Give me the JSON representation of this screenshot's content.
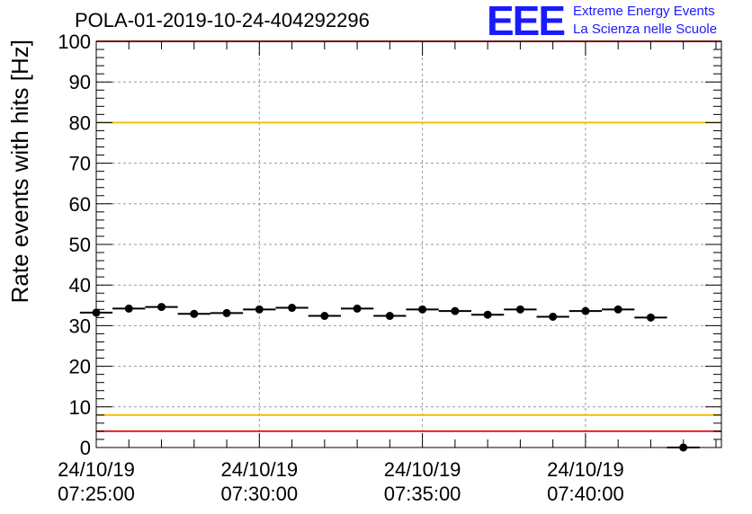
{
  "header": {
    "title": "POLA-01-2019-10-24-404292296",
    "logo_text": "EEE",
    "org_line1": "Extreme Energy Events",
    "org_line2": "La Scienza nelle Scuole",
    "logo_color": "#1a1aff"
  },
  "chart_data": {
    "type": "scatter",
    "title": "POLA-01-2019-10-24-404292296",
    "ylabel": "Rate events with hits [Hz]",
    "xlabel": "",
    "ylim": [
      0,
      100
    ],
    "y_ticks": [
      "0",
      "10",
      "20",
      "30",
      "40",
      "50",
      "60",
      "70",
      "80",
      "90",
      "100"
    ],
    "x_ticks": [
      {
        "date": "24/10/19",
        "time": "07:25:00",
        "seconds": 0
      },
      {
        "date": "24/10/19",
        "time": "07:30:00",
        "seconds": 300
      },
      {
        "date": "24/10/19",
        "time": "07:35:00",
        "seconds": 600
      },
      {
        "date": "24/10/19",
        "time": "07:40:00",
        "seconds": 900
      }
    ],
    "x_range_seconds": [
      0,
      1150
    ],
    "bin_width_seconds": 60,
    "grid": true,
    "reference_lines": [
      {
        "value": 100,
        "color": "#e8201e"
      },
      {
        "value": 80,
        "color": "#f2c300"
      },
      {
        "value": 8,
        "color": "#f2c300"
      },
      {
        "value": 4,
        "color": "#e8201e"
      }
    ],
    "series": [
      {
        "marker_color": "#000000",
        "x_seconds": [
          0,
          60,
          120,
          180,
          240,
          300,
          360,
          420,
          480,
          540,
          600,
          660,
          720,
          780,
          840,
          900,
          960,
          1020,
          1080
        ],
        "values": [
          33.2,
          34.2,
          34.6,
          32.9,
          33.1,
          34.0,
          34.4,
          32.4,
          34.2,
          32.4,
          34.0,
          33.6,
          32.7,
          34.0,
          32.2,
          33.6,
          34.0,
          32.0,
          0
        ]
      }
    ]
  }
}
